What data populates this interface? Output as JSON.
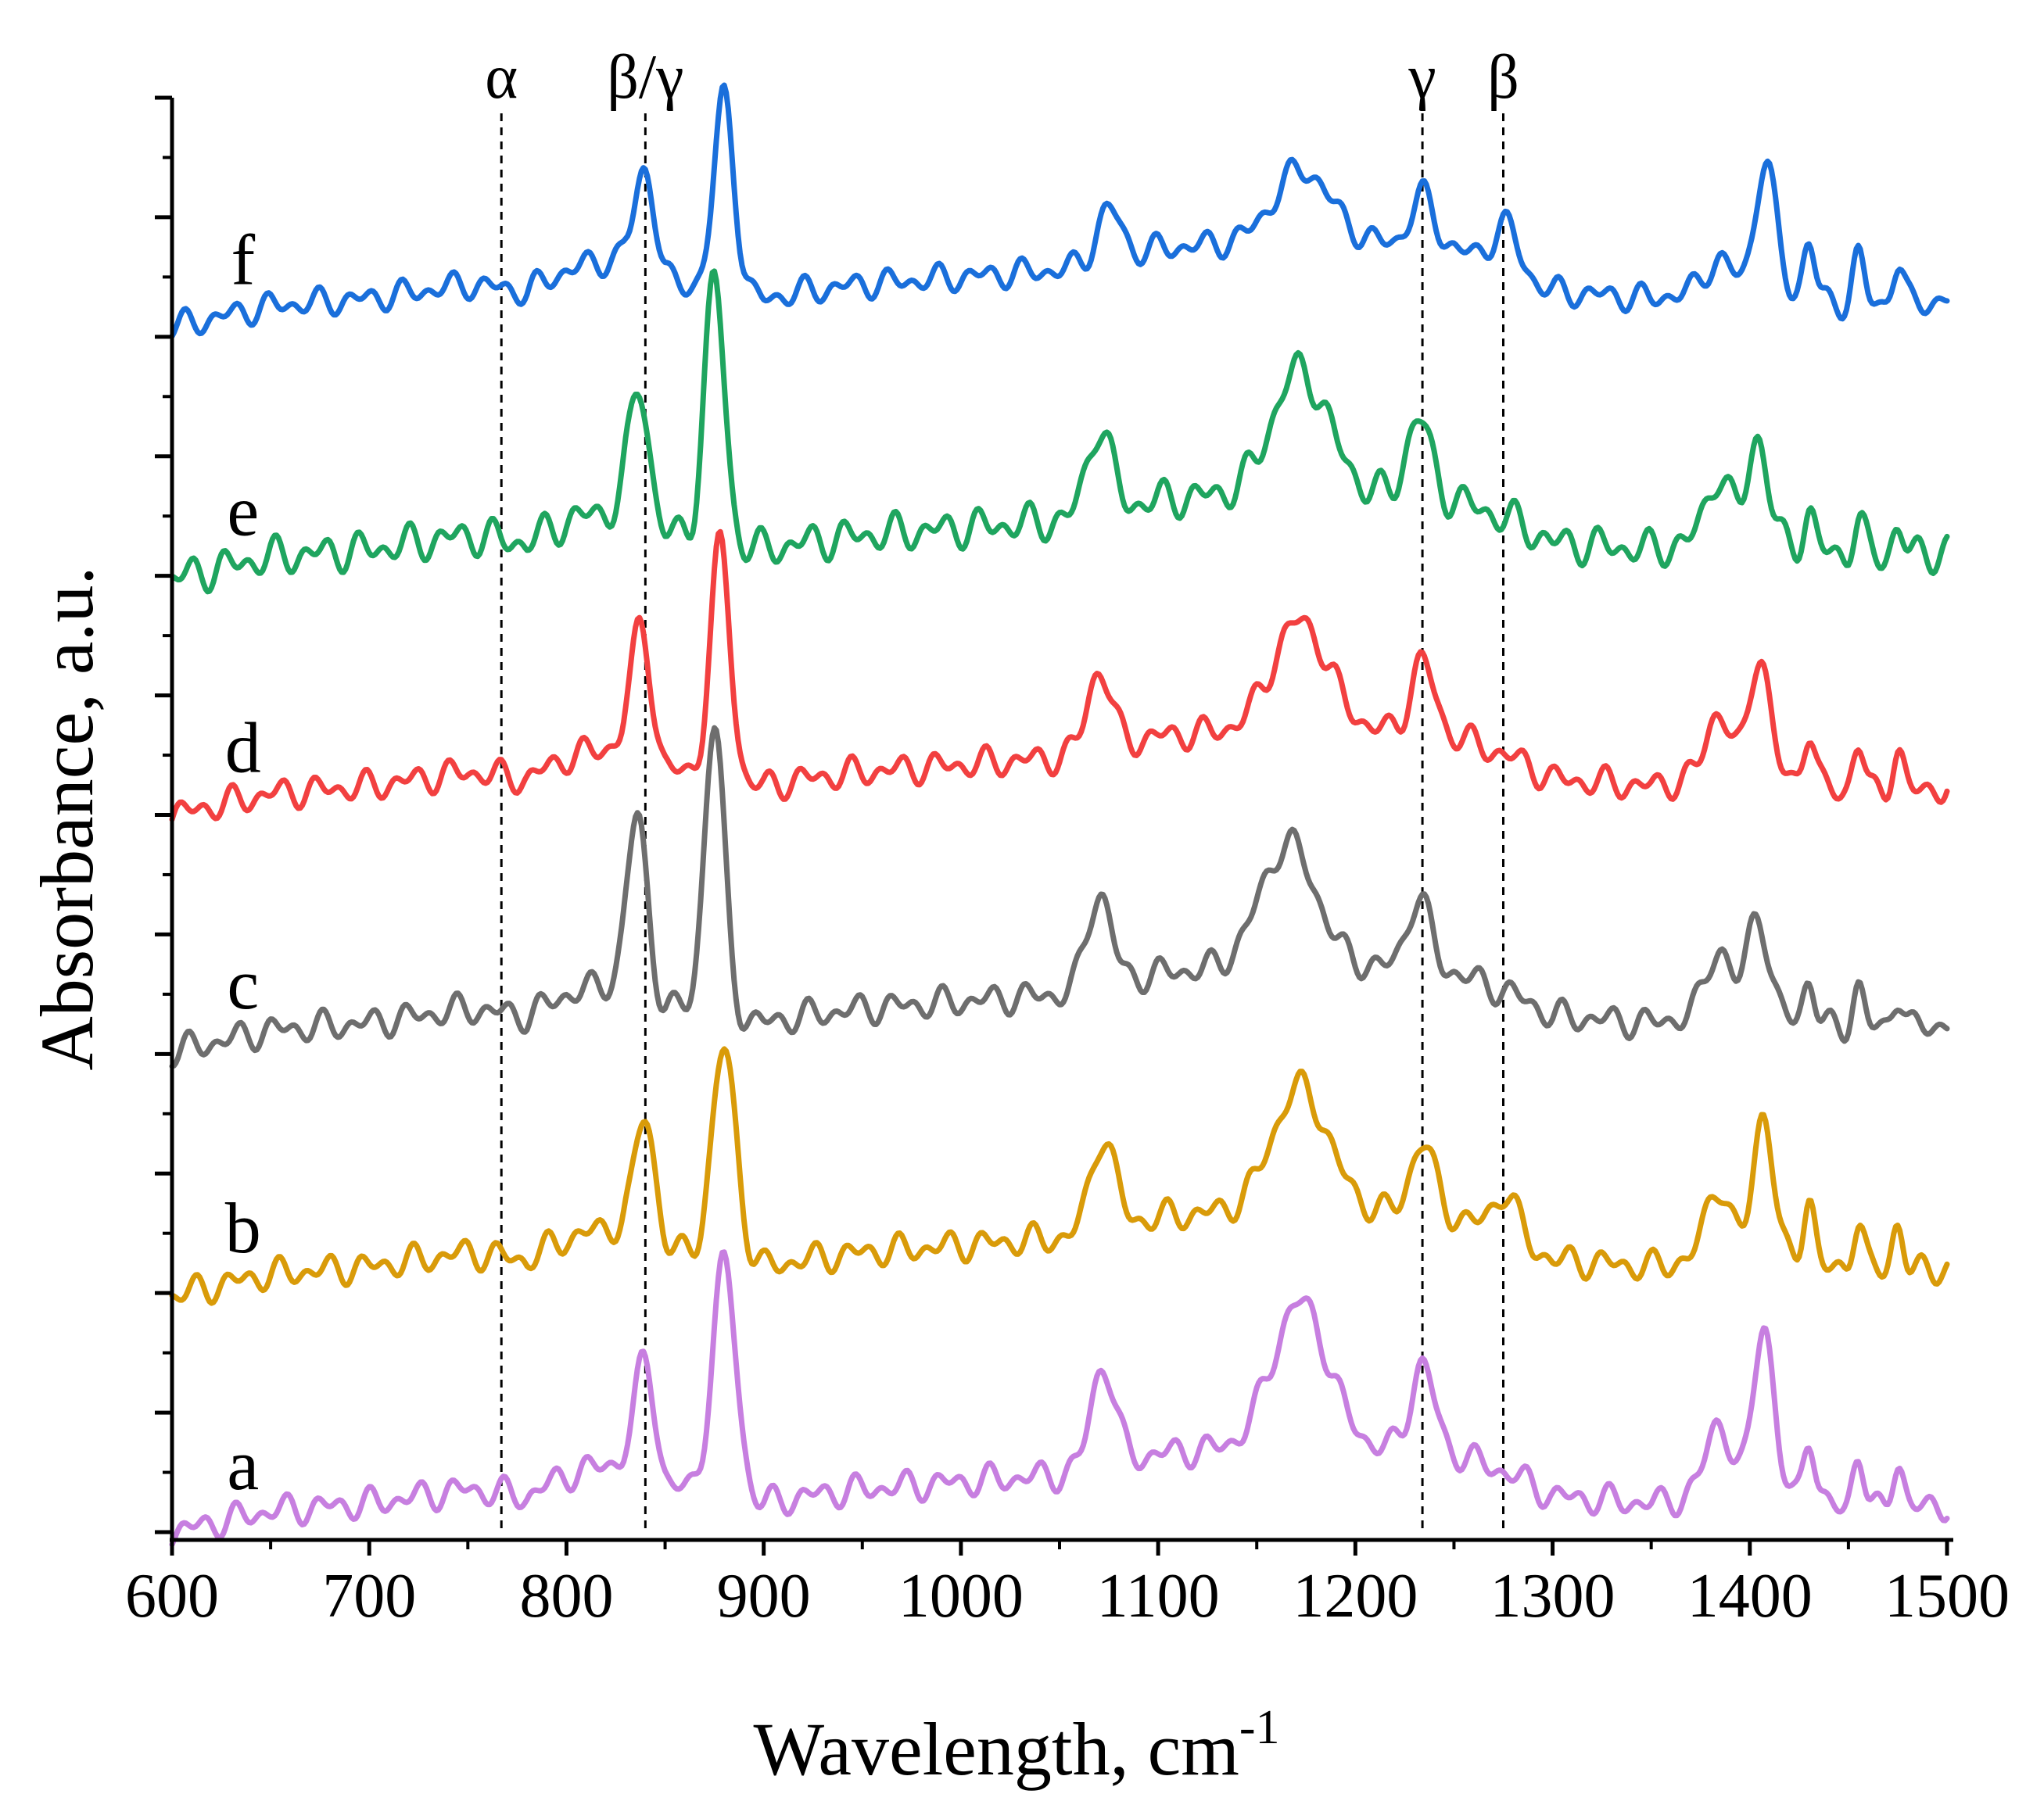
{
  "chart_data": {
    "type": "line",
    "title": "",
    "xlabel": "Wavelength, cm",
    "xlabel_superscript": "-1",
    "ylabel": "Absorbance, a.u.",
    "xlim": [
      600,
      1500
    ],
    "ylim": [
      0,
      1
    ],
    "x_ticks": [
      600,
      700,
      800,
      900,
      1000,
      1100,
      1200,
      1300,
      1400,
      1500
    ],
    "x_tick_labels": [
      "600",
      "700",
      "800",
      "900",
      "1000",
      "1100",
      "1200",
      "1300",
      "1400",
      "1500"
    ],
    "y_tick_labels_shown": false,
    "grid": false,
    "legend": "none",
    "reference_lines": [
      {
        "label": "α",
        "x": 767
      },
      {
        "label": "β/γ",
        "x": 840
      },
      {
        "label": "γ",
        "x": 1234
      },
      {
        "label": "β",
        "x": 1275
      }
    ],
    "series": [
      {
        "name": "a",
        "color": "#c77fe0",
        "offset": 0.0,
        "base": [
          [
            600,
            0.0
          ],
          [
            650,
            0.015
          ],
          [
            700,
            0.02
          ],
          [
            750,
            0.03
          ],
          [
            780,
            0.025
          ],
          [
            800,
            0.04
          ],
          [
            830,
            0.05
          ],
          [
            850,
            0.03
          ],
          [
            870,
            0.03
          ],
          [
            900,
            0.02
          ],
          [
            920,
            0.025
          ],
          [
            950,
            0.03
          ],
          [
            1000,
            0.035
          ],
          [
            1050,
            0.04
          ],
          [
            1100,
            0.055
          ],
          [
            1150,
            0.06
          ],
          [
            1200,
            0.06
          ],
          [
            1250,
            0.055
          ],
          [
            1280,
            0.04
          ],
          [
            1300,
            0.025
          ],
          [
            1350,
            0.02
          ],
          [
            1370,
            0.025
          ],
          [
            1400,
            0.03
          ],
          [
            1430,
            0.02
          ],
          [
            1450,
            0.015
          ],
          [
            1480,
            0.015
          ],
          [
            1500,
            0.02
          ]
        ],
        "peaks": [
          [
            840,
            0.08,
            5
          ],
          [
            880,
            0.16,
            6
          ],
          [
            1072,
            0.07,
            6
          ],
          [
            1172,
            0.1,
            14
          ],
          [
            1234,
            0.06,
            6
          ],
          [
            1384,
            0.05,
            6
          ],
          [
            1407,
            0.12,
            5
          ],
          [
            1430,
            0.05,
            3
          ],
          [
            1455,
            0.04,
            3
          ],
          [
            1475,
            0.035,
            3
          ]
        ],
        "ripple": 0.012
      },
      {
        "name": "b",
        "color": "#d99b09",
        "offset": 0.165,
        "base": [
          [
            600,
            0.0
          ],
          [
            650,
            0.015
          ],
          [
            700,
            0.02
          ],
          [
            750,
            0.03
          ],
          [
            780,
            0.025
          ],
          [
            800,
            0.04
          ],
          [
            830,
            0.05
          ],
          [
            850,
            0.03
          ],
          [
            870,
            0.03
          ],
          [
            900,
            0.02
          ],
          [
            920,
            0.025
          ],
          [
            950,
            0.03
          ],
          [
            1000,
            0.035
          ],
          [
            1050,
            0.04
          ],
          [
            1100,
            0.055
          ],
          [
            1150,
            0.06
          ],
          [
            1200,
            0.06
          ],
          [
            1250,
            0.055
          ],
          [
            1280,
            0.04
          ],
          [
            1300,
            0.025
          ],
          [
            1350,
            0.02
          ],
          [
            1370,
            0.025
          ],
          [
            1400,
            0.03
          ],
          [
            1430,
            0.02
          ],
          [
            1450,
            0.015
          ],
          [
            1480,
            0.015
          ],
          [
            1500,
            0.02
          ]
        ],
        "peaks": [
          [
            840,
            0.085,
            5
          ],
          [
            880,
            0.145,
            6
          ],
          [
            1072,
            0.065,
            6
          ],
          [
            1172,
            0.085,
            14
          ],
          [
            1234,
            0.05,
            6
          ],
          [
            1276,
            0.03,
            6
          ],
          [
            1384,
            0.05,
            6
          ],
          [
            1407,
            0.1,
            5
          ],
          [
            1430,
            0.05,
            3
          ],
          [
            1455,
            0.04,
            3
          ],
          [
            1475,
            0.035,
            3
          ]
        ],
        "ripple": 0.012
      },
      {
        "name": "c",
        "color": "#6e6e6e",
        "offset": 0.335,
        "base": [
          [
            600,
            0.0
          ],
          [
            650,
            0.015
          ],
          [
            700,
            0.02
          ],
          [
            750,
            0.03
          ],
          [
            780,
            0.025
          ],
          [
            800,
            0.04
          ],
          [
            830,
            0.05
          ],
          [
            850,
            0.03
          ],
          [
            870,
            0.03
          ],
          [
            900,
            0.02
          ],
          [
            920,
            0.025
          ],
          [
            950,
            0.03
          ],
          [
            1000,
            0.035
          ],
          [
            1050,
            0.04
          ],
          [
            1100,
            0.055
          ],
          [
            1150,
            0.06
          ],
          [
            1200,
            0.06
          ],
          [
            1250,
            0.055
          ],
          [
            1280,
            0.04
          ],
          [
            1300,
            0.025
          ],
          [
            1350,
            0.02
          ],
          [
            1370,
            0.025
          ],
          [
            1400,
            0.03
          ],
          [
            1430,
            0.02
          ],
          [
            1450,
            0.015
          ],
          [
            1480,
            0.015
          ],
          [
            1500,
            0.02
          ]
        ],
        "peaks": [
          [
            836,
            0.12,
            5
          ],
          [
            875,
            0.2,
            5
          ],
          [
            1070,
            0.065,
            6
          ],
          [
            1166,
            0.085,
            14
          ],
          [
            1232,
            0.05,
            6
          ],
          [
            1384,
            0.045,
            6
          ],
          [
            1404,
            0.07,
            5
          ],
          [
            1430,
            0.03,
            3
          ],
          [
            1455,
            0.03,
            3
          ],
          [
            1475,
            0.025,
            3
          ]
        ],
        "ripple": 0.012
      },
      {
        "name": "d",
        "color": "#f24040",
        "offset": 0.5,
        "base": [
          [
            600,
            0.0
          ],
          [
            650,
            0.015
          ],
          [
            700,
            0.02
          ],
          [
            750,
            0.03
          ],
          [
            780,
            0.025
          ],
          [
            800,
            0.04
          ],
          [
            830,
            0.05
          ],
          [
            850,
            0.03
          ],
          [
            870,
            0.03
          ],
          [
            900,
            0.02
          ],
          [
            920,
            0.025
          ],
          [
            950,
            0.03
          ],
          [
            1000,
            0.035
          ],
          [
            1050,
            0.04
          ],
          [
            1100,
            0.055
          ],
          [
            1150,
            0.06
          ],
          [
            1200,
            0.06
          ],
          [
            1250,
            0.055
          ],
          [
            1280,
            0.04
          ],
          [
            1300,
            0.025
          ],
          [
            1350,
            0.02
          ],
          [
            1370,
            0.025
          ],
          [
            1400,
            0.03
          ],
          [
            1430,
            0.02
          ],
          [
            1450,
            0.015
          ],
          [
            1480,
            0.015
          ],
          [
            1500,
            0.02
          ]
        ],
        "peaks": [
          [
            838,
            0.09,
            5
          ],
          [
            878,
            0.16,
            5
          ],
          [
            1070,
            0.055,
            6
          ],
          [
            1172,
            0.075,
            14
          ],
          [
            1234,
            0.05,
            6
          ],
          [
            1384,
            0.045,
            6
          ],
          [
            1405,
            0.085,
            5
          ],
          [
            1430,
            0.04,
            3
          ],
          [
            1455,
            0.035,
            3
          ],
          [
            1475,
            0.03,
            3
          ]
        ],
        "ripple": 0.012
      },
      {
        "name": "e",
        "color": "#1fa55f",
        "offset": 0.665,
        "base": [
          [
            600,
            0.0
          ],
          [
            650,
            0.015
          ],
          [
            700,
            0.02
          ],
          [
            750,
            0.03
          ],
          [
            780,
            0.025
          ],
          [
            800,
            0.04
          ],
          [
            830,
            0.05
          ],
          [
            850,
            0.03
          ],
          [
            870,
            0.03
          ],
          [
            900,
            0.02
          ],
          [
            920,
            0.025
          ],
          [
            950,
            0.03
          ],
          [
            1000,
            0.035
          ],
          [
            1050,
            0.04
          ],
          [
            1100,
            0.055
          ],
          [
            1150,
            0.06
          ],
          [
            1200,
            0.06
          ],
          [
            1250,
            0.055
          ],
          [
            1280,
            0.04
          ],
          [
            1300,
            0.025
          ],
          [
            1350,
            0.02
          ],
          [
            1370,
            0.025
          ],
          [
            1400,
            0.03
          ],
          [
            1430,
            0.02
          ],
          [
            1450,
            0.015
          ],
          [
            1480,
            0.015
          ],
          [
            1500,
            0.02
          ]
        ],
        "peaks": [
          [
            837,
            0.09,
            5
          ],
          [
            875,
            0.18,
            5
          ],
          [
            1070,
            0.06,
            6
          ],
          [
            1172,
            0.085,
            14
          ],
          [
            1232,
            0.055,
            6
          ],
          [
            1384,
            0.045,
            6
          ],
          [
            1404,
            0.07,
            5
          ],
          [
            1430,
            0.025,
            3
          ],
          [
            1455,
            0.025,
            3
          ],
          [
            1475,
            0.02,
            3
          ]
        ],
        "ripple": 0.015
      },
      {
        "name": "f",
        "color": "#1a6fdb",
        "offset": 0.84,
        "base": [
          [
            600,
            0.0
          ],
          [
            650,
            0.015
          ],
          [
            700,
            0.02
          ],
          [
            750,
            0.03
          ],
          [
            780,
            0.025
          ],
          [
            800,
            0.04
          ],
          [
            830,
            0.05
          ],
          [
            850,
            0.03
          ],
          [
            870,
            0.03
          ],
          [
            900,
            0.02
          ],
          [
            920,
            0.025
          ],
          [
            950,
            0.03
          ],
          [
            1000,
            0.035
          ],
          [
            1050,
            0.04
          ],
          [
            1100,
            0.055
          ],
          [
            1150,
            0.06
          ],
          [
            1200,
            0.06
          ],
          [
            1250,
            0.055
          ],
          [
            1280,
            0.04
          ],
          [
            1300,
            0.025
          ],
          [
            1350,
            0.02
          ],
          [
            1370,
            0.025
          ],
          [
            1400,
            0.03
          ],
          [
            1430,
            0.02
          ],
          [
            1450,
            0.015
          ],
          [
            1480,
            0.015
          ],
          [
            1500,
            0.02
          ]
        ],
        "peaks": [
          [
            840,
            0.07,
            5
          ],
          [
            880,
            0.135,
            5
          ],
          [
            1075,
            0.035,
            6
          ],
          [
            1173,
            0.05,
            14
          ],
          [
            1234,
            0.035,
            6
          ],
          [
            1276,
            0.03,
            6
          ],
          [
            1384,
            0.02,
            6
          ],
          [
            1408,
            0.09,
            5
          ],
          [
            1430,
            0.04,
            3
          ],
          [
            1455,
            0.035,
            3
          ],
          [
            1475,
            0.03,
            3
          ]
        ],
        "ripple": 0.011
      }
    ]
  }
}
